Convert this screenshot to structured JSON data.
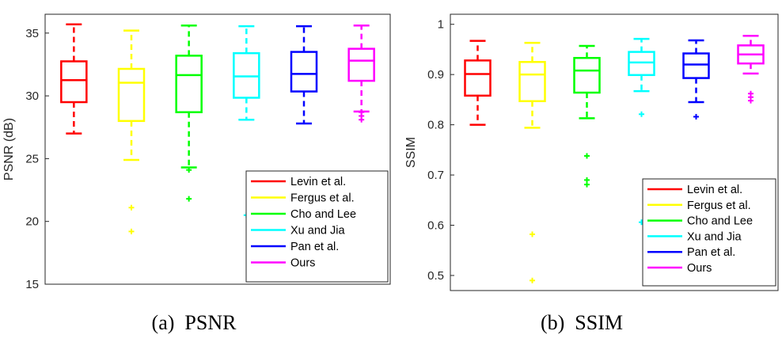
{
  "methods": [
    {
      "name": "Levin et al.",
      "color": "#ff0000"
    },
    {
      "name": "Fergus et al.",
      "color": "#ffff00"
    },
    {
      "name": "Cho and Lee",
      "color": "#00ff00"
    },
    {
      "name": "Xu and Jia",
      "color": "#00ffff"
    },
    {
      "name": "Pan et al.",
      "color": "#0000ff"
    },
    {
      "name": "Ours",
      "color": "#ff00ff"
    }
  ],
  "chart_data": [
    {
      "type": "box",
      "caption": "(a)  PSNR",
      "ylabel": "PSNR (dB)",
      "ylim": [
        15,
        36.5
      ],
      "yticks": [
        15,
        20,
        25,
        30,
        35
      ],
      "ytick_labels": [
        "15",
        "20",
        "25",
        "30",
        "35"
      ],
      "legend_position": "bottom-right",
      "boxes": [
        {
          "name": "Levin et al.",
          "q1": 29.5,
          "median": 31.25,
          "q3": 32.75,
          "whisker_low": 27.0,
          "whisker_high": 35.7,
          "outliers": []
        },
        {
          "name": "Fergus et al.",
          "q1": 28.0,
          "median": 31.05,
          "q3": 32.15,
          "whisker_low": 24.9,
          "whisker_high": 35.2,
          "outliers": [
            21.1,
            19.2
          ]
        },
        {
          "name": "Cho and Lee",
          "q1": 28.7,
          "median": 31.65,
          "q3": 33.2,
          "whisker_low": 24.3,
          "whisker_high": 35.6,
          "outliers": [
            24.1,
            21.8
          ]
        },
        {
          "name": "Xu and Jia",
          "q1": 29.85,
          "median": 31.55,
          "q3": 33.4,
          "whisker_low": 28.1,
          "whisker_high": 35.55,
          "outliers": [
            20.5
          ]
        },
        {
          "name": "Pan et al.",
          "q1": 30.35,
          "median": 31.75,
          "q3": 33.5,
          "whisker_low": 27.8,
          "whisker_high": 35.55,
          "outliers": []
        },
        {
          "name": "Ours",
          "q1": 31.2,
          "median": 32.8,
          "q3": 33.75,
          "whisker_low": 28.75,
          "whisker_high": 35.6,
          "outliers": [
            28.7,
            28.4,
            28.1
          ]
        }
      ]
    },
    {
      "type": "box",
      "caption": "(b)  SSIM",
      "ylabel": "SSIM",
      "ylim": [
        0.47,
        1.02
      ],
      "yticks": [
        0.5,
        0.6,
        0.7,
        0.8,
        0.9,
        1
      ],
      "ytick_labels": [
        "0.5",
        "0.6",
        "0.7",
        "0.8",
        "0.9",
        "1"
      ],
      "legend_position": "bottom-right",
      "boxes": [
        {
          "name": "Levin et al.",
          "q1": 0.858,
          "median": 0.901,
          "q3": 0.928,
          "whisker_low": 0.8,
          "whisker_high": 0.967,
          "outliers": []
        },
        {
          "name": "Fergus et al.",
          "q1": 0.847,
          "median": 0.9,
          "q3": 0.925,
          "whisker_low": 0.794,
          "whisker_high": 0.963,
          "outliers": [
            0.582,
            0.49
          ]
        },
        {
          "name": "Cho and Lee",
          "q1": 0.864,
          "median": 0.908,
          "q3": 0.933,
          "whisker_low": 0.813,
          "whisker_high": 0.957,
          "outliers": [
            0.738,
            0.69,
            0.681
          ]
        },
        {
          "name": "Xu and Jia",
          "q1": 0.899,
          "median": 0.924,
          "q3": 0.945,
          "whisker_low": 0.867,
          "whisker_high": 0.971,
          "outliers": [
            0.821,
            0.606
          ]
        },
        {
          "name": "Pan et al.",
          "q1": 0.893,
          "median": 0.92,
          "q3": 0.942,
          "whisker_low": 0.845,
          "whisker_high": 0.968,
          "outliers": [
            0.816
          ]
        },
        {
          "name": "Ours",
          "q1": 0.922,
          "median": 0.94,
          "q3": 0.958,
          "whisker_low": 0.902,
          "whisker_high": 0.977,
          "outliers": [
            0.862,
            0.855,
            0.848
          ]
        }
      ]
    }
  ]
}
